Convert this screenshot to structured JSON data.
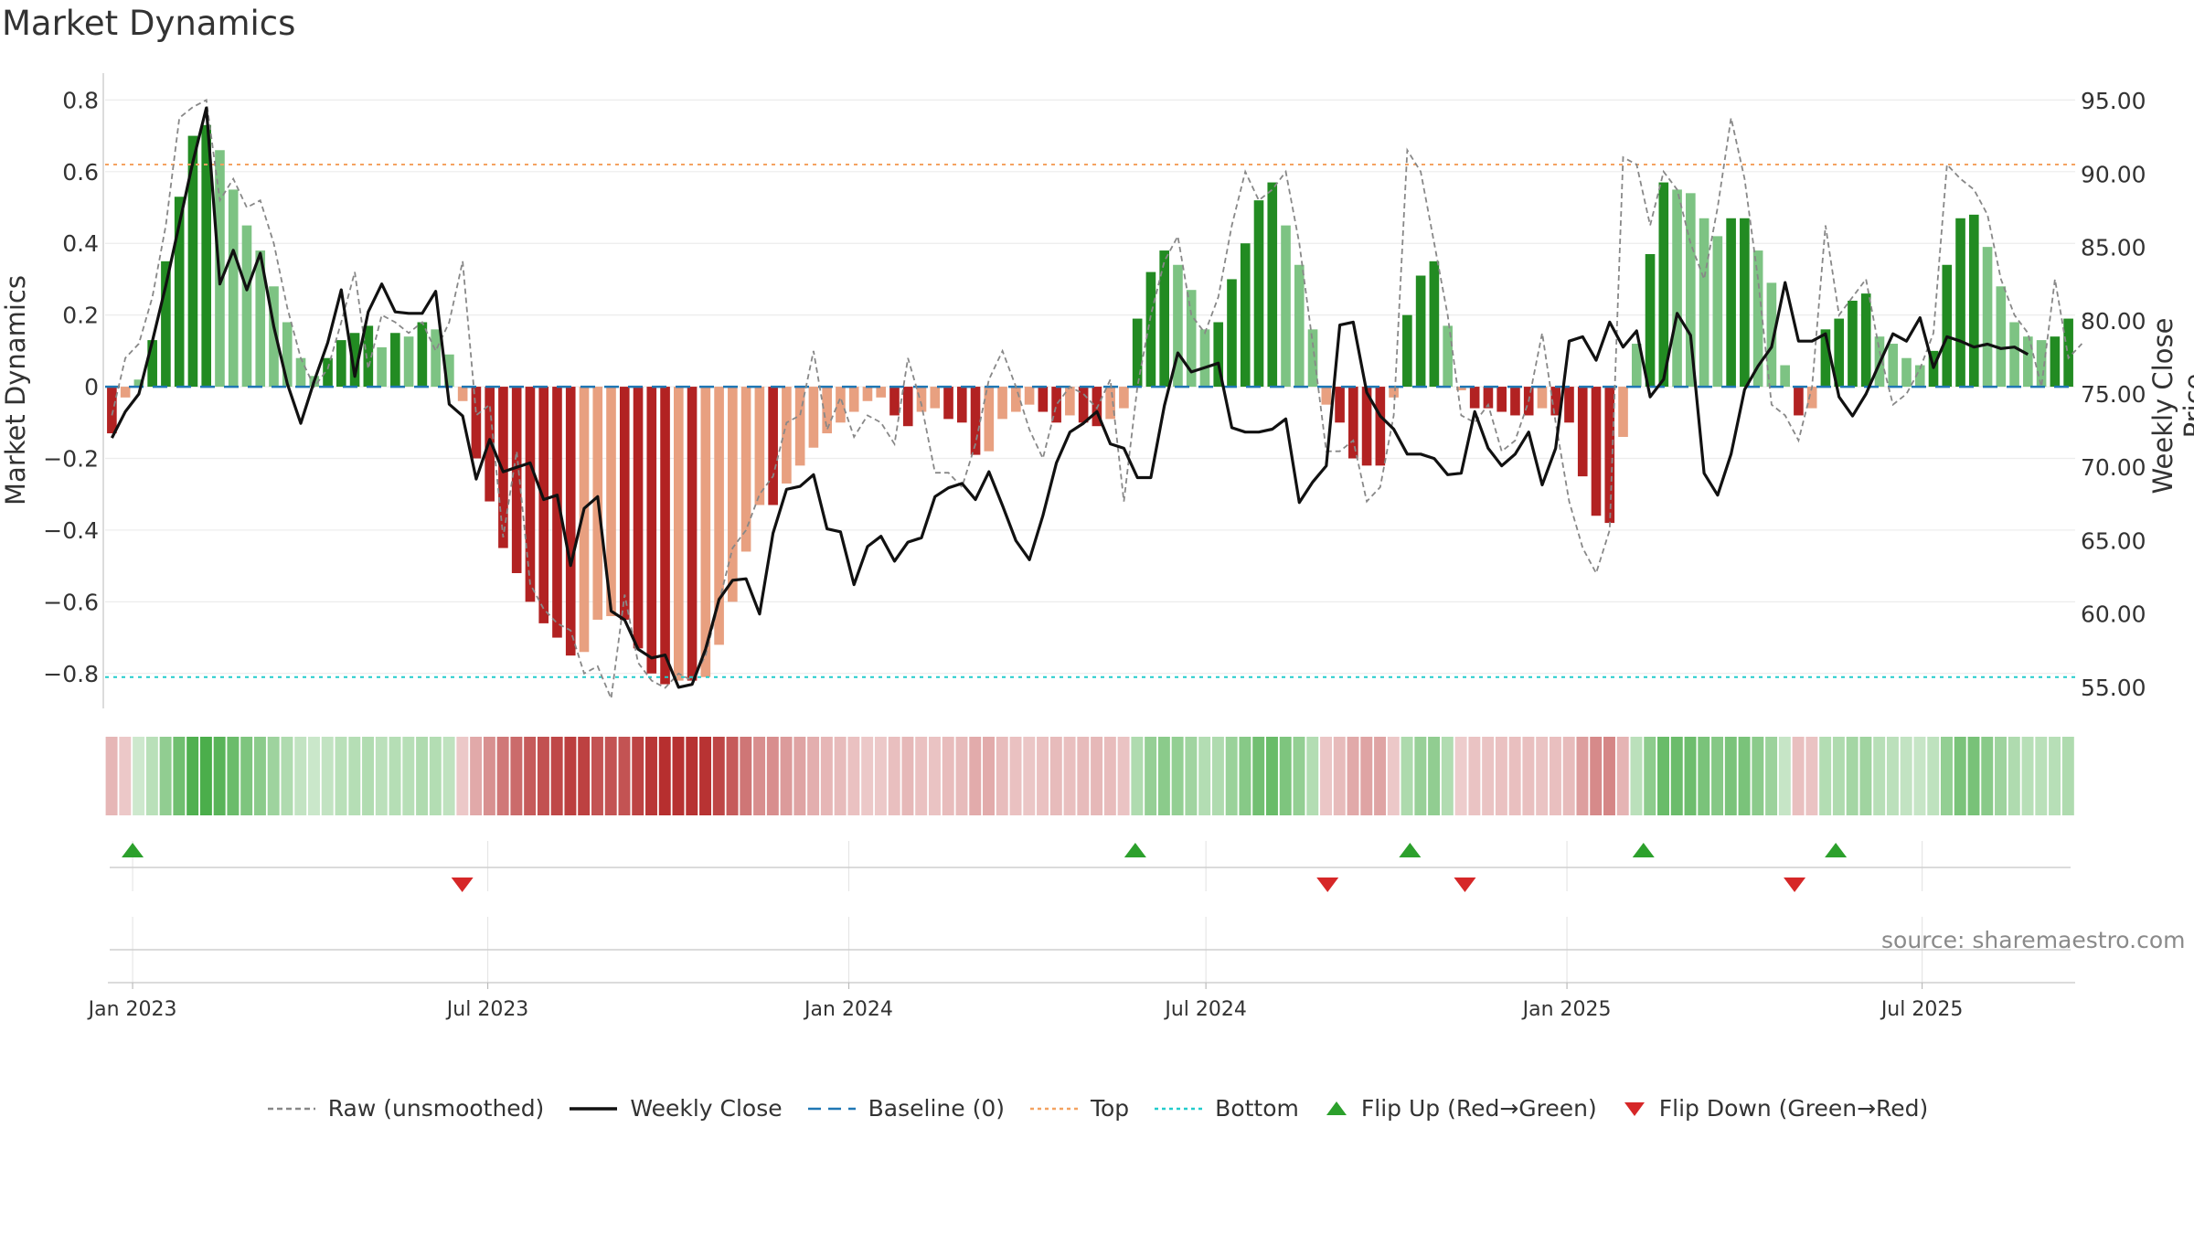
{
  "title": "Market Dynamics",
  "source": "source: sharemaestro.com",
  "chart_data": {
    "type": "bar",
    "title": "Market Dynamics",
    "ylabel": "Market Dynamics",
    "y2label": "Weekly Close Price",
    "ylim": [
      -0.9,
      0.88
    ],
    "y2lim": [
      53.5,
      97.0
    ],
    "yticks": [
      "0.8",
      "0.6",
      "0.4",
      "0.2",
      "0",
      "−0.2",
      "−0.4",
      "−0.6",
      "−0.8"
    ],
    "ytick_values": [
      0.8,
      0.6,
      0.4,
      0.2,
      0,
      -0.2,
      -0.4,
      -0.6,
      -0.8
    ],
    "y2ticks": [
      "95.00",
      "90.00",
      "85.00",
      "80.00",
      "75.00",
      "70.00",
      "65.00",
      "60.00",
      "55.00"
    ],
    "y2tick_values": [
      95,
      90,
      85,
      80,
      75,
      70,
      65,
      60,
      55
    ],
    "xticks": [
      "Jan 2023",
      "Jul 2023",
      "Jan 2024",
      "Jul 2024",
      "Jan 2025",
      "Jul 2025"
    ],
    "xtick_dates": [
      "2023-01-01",
      "2023-07-01",
      "2024-01-01",
      "2024-07-01",
      "2025-01-01",
      "2025-07-01"
    ],
    "top_level": 0.62,
    "bottom_level": -0.81,
    "baseline": 0,
    "start_date": "2022-12-18",
    "end_date": "2025-09-17",
    "histogram": [
      -0.13,
      -0.03,
      0.02,
      0.13,
      0.35,
      0.53,
      0.7,
      0.73,
      0.66,
      0.55,
      0.45,
      0.38,
      0.28,
      0.18,
      0.08,
      0.03,
      0.08,
      0.13,
      0.15,
      0.17,
      0.11,
      0.15,
      0.14,
      0.18,
      0.16,
      0.09,
      -0.04,
      -0.2,
      -0.32,
      -0.45,
      -0.52,
      -0.6,
      -0.66,
      -0.7,
      -0.75,
      -0.74,
      -0.65,
      -0.64,
      -0.65,
      -0.73,
      -0.8,
      -0.83,
      -0.82,
      -0.82,
      -0.81,
      -0.72,
      -0.6,
      -0.46,
      -0.33,
      -0.33,
      -0.27,
      -0.22,
      -0.17,
      -0.13,
      -0.1,
      -0.07,
      -0.04,
      -0.03,
      -0.08,
      -0.11,
      -0.07,
      -0.06,
      -0.09,
      -0.1,
      -0.19,
      -0.18,
      -0.09,
      -0.07,
      -0.05,
      -0.07,
      -0.1,
      -0.08,
      -0.1,
      -0.11,
      -0.09,
      -0.06,
      0.19,
      0.32,
      0.38,
      0.34,
      0.27,
      0.16,
      0.18,
      0.3,
      0.4,
      0.52,
      0.57,
      0.45,
      0.34,
      0.16,
      -0.05,
      -0.1,
      -0.2,
      -0.22,
      -0.22,
      -0.03,
      0.2,
      0.31,
      0.35,
      0.17,
      -0.01,
      -0.06,
      -0.06,
      -0.07,
      -0.08,
      -0.08,
      -0.06,
      -0.08,
      -0.1,
      -0.25,
      -0.36,
      -0.38,
      -0.14,
      0.12,
      0.37,
      0.57,
      0.55,
      0.54,
      0.47,
      0.42,
      0.47,
      0.47,
      0.38,
      0.29,
      0.06,
      -0.08,
      -0.06,
      0.16,
      0.19,
      0.24,
      0.26,
      0.14,
      0.12,
      0.08,
      0.06,
      0.1,
      0.34,
      0.47,
      0.48,
      0.39,
      0.28,
      0.18,
      0.14,
      0.13,
      0.14,
      0.19
    ],
    "close": [
      72.0,
      73.8,
      75.0,
      78.6,
      82.4,
      86.6,
      90.8,
      94.5,
      82.5,
      84.8,
      82.1,
      84.6,
      79.6,
      75.7,
      73.0,
      75.9,
      78.5,
      82.1,
      76.2,
      80.6,
      82.5,
      80.6,
      80.5,
      80.5,
      82.0,
      74.3,
      73.5,
      69.2,
      71.9,
      69.7,
      70.0,
      70.3,
      67.8,
      68.1,
      63.3,
      67.2,
      68.0,
      60.2,
      59.6,
      57.6,
      57.0,
      57.2,
      55.0,
      55.2,
      57.6,
      61.0,
      62.3,
      62.4,
      60.0,
      65.5,
      68.5,
      68.7,
      69.5,
      65.8,
      65.6,
      62.0,
      64.6,
      65.3,
      63.6,
      64.9,
      65.2,
      68.0,
      68.6,
      68.9,
      67.8,
      69.7,
      67.4,
      65.0,
      63.7,
      66.7,
      70.3,
      72.4,
      73.0,
      73.8,
      71.6,
      71.3,
      69.3,
      69.3,
      74.2,
      77.8,
      76.5,
      76.8,
      77.1,
      72.7,
      72.4,
      72.4,
      72.6,
      73.3,
      67.6,
      69.0,
      70.1,
      79.7,
      79.9,
      75.1,
      73.5,
      72.6,
      70.9,
      70.9,
      70.6,
      69.5,
      69.6,
      73.8,
      71.3,
      70.1,
      70.9,
      72.4,
      68.8,
      71.3,
      78.6,
      78.9,
      77.3,
      79.9,
      78.2,
      79.3,
      74.8,
      76.0,
      80.5,
      79.0,
      69.6,
      68.1,
      70.9,
      75.3,
      76.9,
      78.2,
      82.6,
      78.6,
      78.6,
      79.1,
      74.8,
      73.5,
      75.0,
      77.1,
      79.1,
      78.6,
      80.2,
      76.8,
      78.9,
      78.6,
      78.2,
      78.4,
      78.1,
      78.2,
      77.7
    ],
    "raw": [
      -0.08,
      0.08,
      0.12,
      0.25,
      0.45,
      0.75,
      0.78,
      0.8,
      0.52,
      0.58,
      0.5,
      0.52,
      0.4,
      0.22,
      0.08,
      0.0,
      0.05,
      0.18,
      0.32,
      0.05,
      0.2,
      0.18,
      0.15,
      0.18,
      0.1,
      0.18,
      0.35,
      -0.08,
      -0.05,
      -0.42,
      -0.18,
      -0.55,
      -0.62,
      -0.66,
      -0.68,
      -0.8,
      -0.78,
      -0.87,
      -0.58,
      -0.77,
      -0.82,
      -0.84,
      -0.8,
      -0.82,
      -0.75,
      -0.6,
      -0.45,
      -0.4,
      -0.3,
      -0.25,
      -0.1,
      -0.08,
      0.1,
      -0.12,
      -0.03,
      -0.14,
      -0.08,
      -0.1,
      -0.16,
      0.08,
      -0.05,
      -0.24,
      -0.24,
      -0.28,
      -0.16,
      0.02,
      0.1,
      0.0,
      -0.12,
      -0.2,
      -0.05,
      0.0,
      -0.02,
      -0.06,
      0.02,
      -0.32,
      0.0,
      0.2,
      0.35,
      0.42,
      0.2,
      0.15,
      0.25,
      0.45,
      0.6,
      0.52,
      0.55,
      0.6,
      0.4,
      0.12,
      -0.18,
      -0.18,
      -0.15,
      -0.32,
      -0.28,
      -0.08,
      0.66,
      0.6,
      0.4,
      0.2,
      -0.08,
      -0.1,
      -0.05,
      -0.18,
      -0.15,
      -0.04,
      0.15,
      -0.1,
      -0.32,
      -0.45,
      -0.52,
      -0.4,
      0.64,
      0.62,
      0.45,
      0.6,
      0.55,
      0.4,
      0.3,
      0.5,
      0.75,
      0.58,
      0.3,
      -0.05,
      -0.08,
      -0.15,
      0.0,
      0.45,
      0.2,
      0.25,
      0.3,
      0.1,
      -0.05,
      -0.02,
      0.05,
      0.15,
      0.62,
      0.58,
      0.55,
      0.48,
      0.3,
      0.2,
      0.15,
      0.0,
      0.3,
      0.08,
      0.12
    ],
    "flip_up": [
      "2023-01-01",
      "2024-05-26",
      "2024-10-13",
      "2025-02-09",
      "2025-05-18"
    ],
    "flip_down": [
      "2023-06-18",
      "2024-09-01",
      "2024-11-10",
      "2025-04-27"
    ],
    "legend": [
      {
        "label": "Raw (unsmoothed)",
        "style": "dashed",
        "color": "#888888"
      },
      {
        "label": "Weekly Close",
        "style": "solid",
        "color": "#111111"
      },
      {
        "label": "Baseline (0)",
        "style": "dashed",
        "color": "#1f77b4"
      },
      {
        "label": "Top",
        "style": "dotted",
        "color": "#f4a261"
      },
      {
        "label": "Bottom",
        "style": "dotted",
        "color": "#22cccc"
      },
      {
        "label": "Flip Up (Red→Green)",
        "style": "triangle-up",
        "color": "#2ca02c"
      },
      {
        "label": "Flip Down (Green→Red)",
        "style": "triangle-down",
        "color": "#d62728"
      }
    ],
    "legend_position": "bottom-center",
    "colors": {
      "green_strong": "#228b22",
      "green_weak": "#7dc383",
      "red_strong": "#b22222",
      "red_weak": "#e8a080",
      "close_line": "#111111",
      "raw_line": "#888888"
    }
  }
}
